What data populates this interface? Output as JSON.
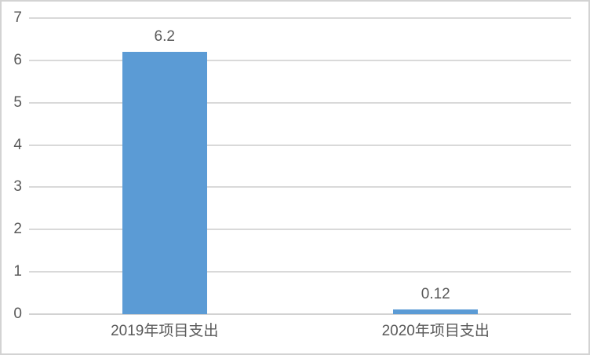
{
  "chart_data": {
    "type": "bar",
    "title": "",
    "xlabel": "",
    "ylabel": "",
    "categories": [
      "2019年项目支出",
      "2020年项目支出"
    ],
    "values": [
      6.2,
      0.12
    ],
    "data_labels": [
      "6.2",
      "0.12"
    ],
    "yticks": [
      0,
      1,
      2,
      3,
      4,
      5,
      6,
      7
    ],
    "ylim": [
      0,
      7
    ],
    "grid": true,
    "legend_position": "none",
    "colors": {
      "bar_fill": "#5b9bd5",
      "gridline": "#d9d9d9",
      "axis_line": "#d2d2d2",
      "label_text": "#595959",
      "frame_border": "#d3d3d3",
      "background": "#ffffff"
    }
  }
}
